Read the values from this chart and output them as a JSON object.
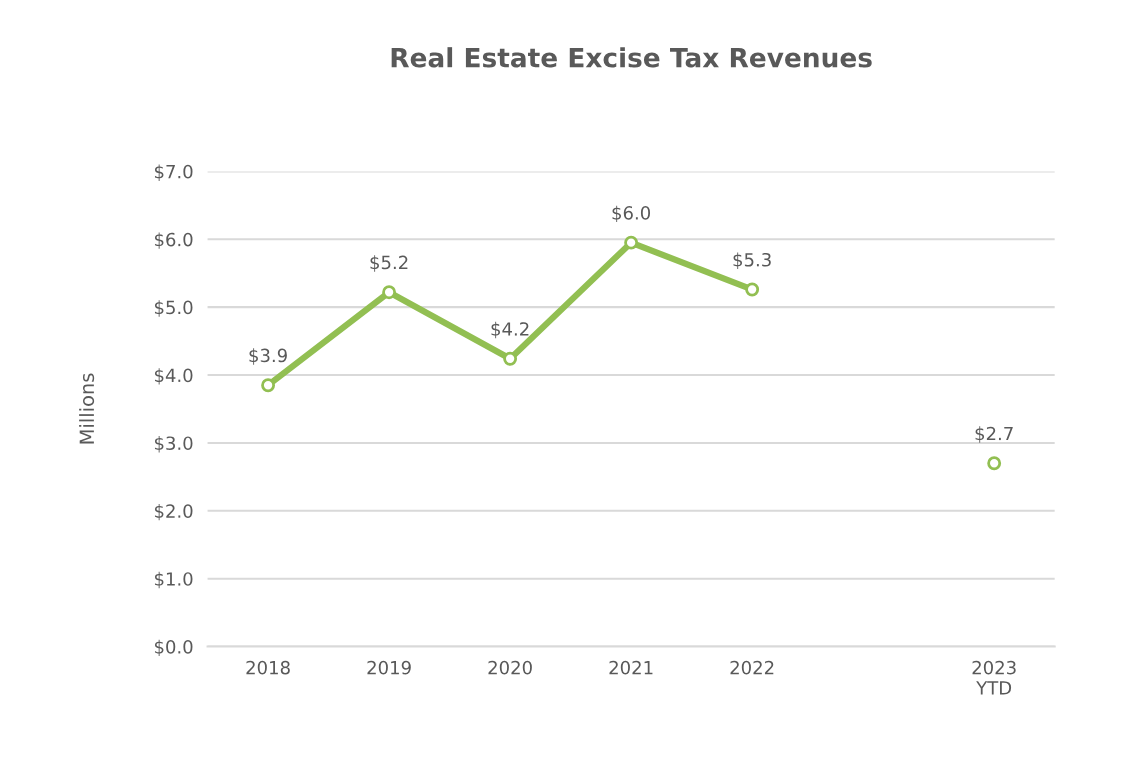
{
  "chart_data": {
    "type": "line",
    "title": "Real Estate Excise Tax Revenues",
    "ylabel": "Millions",
    "categories": [
      "2018",
      "2019",
      "2020",
      "2021",
      "2022",
      null,
      "2023\nYTD"
    ],
    "series": [
      {
        "color": "#92bf52",
        "values": [
          3.85,
          5.22,
          4.24,
          5.95,
          5.26,
          null,
          2.7
        ],
        "value_labels": [
          "$3.9",
          "$5.2",
          "$4.2",
          "$6.0",
          "$5.3",
          null,
          "$2.7"
        ]
      }
    ],
    "ylim": [
      0,
      7
    ],
    "yticks": [
      {
        "value": 0,
        "label": "$0.0"
      },
      {
        "value": 1,
        "label": "$1.0"
      },
      {
        "value": 2,
        "label": "$2.0"
      },
      {
        "value": 3,
        "label": "$3.0"
      },
      {
        "value": 4,
        "label": "$4.0"
      },
      {
        "value": 5,
        "label": "$5.0"
      },
      {
        "value": 6,
        "label": "$6.0"
      },
      {
        "value": 7,
        "label": "$7.0"
      }
    ],
    "grid": "y",
    "marker": "circle",
    "line_style": "solid",
    "legend": false
  }
}
